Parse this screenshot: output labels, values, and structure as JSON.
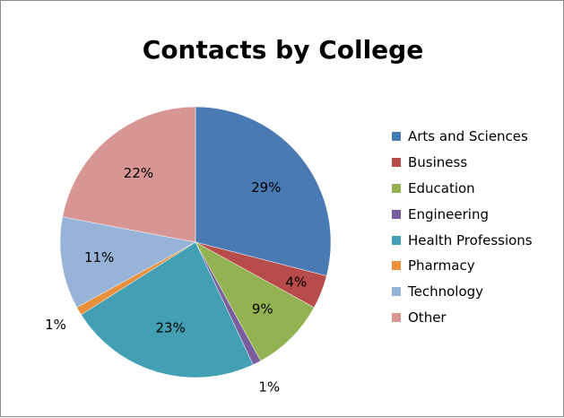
{
  "chart_data": {
    "type": "pie",
    "title": "Contacts by College",
    "legend_position": "right",
    "slices": [
      {
        "label": "Arts and Sciences",
        "value": 29,
        "data_label": "29%",
        "color": "#4a7ab4"
      },
      {
        "label": "Business",
        "value": 4,
        "data_label": "4%",
        "color": "#b84c4a"
      },
      {
        "label": "Education",
        "value": 9,
        "data_label": "9%",
        "color": "#93b352"
      },
      {
        "label": "Engineering",
        "value": 1,
        "data_label": "1%",
        "color": "#7a5d9c"
      },
      {
        "label": "Health Professions",
        "value": 23,
        "data_label": "23%",
        "color": "#43a0b4"
      },
      {
        "label": "Pharmacy",
        "value": 1,
        "data_label": "1%",
        "color": "#e8903b"
      },
      {
        "label": "Technology",
        "value": 11,
        "data_label": "11%",
        "color": "#97b3d8"
      },
      {
        "label": "Other",
        "value": 22,
        "data_label": "22%",
        "color": "#d79594"
      }
    ]
  }
}
